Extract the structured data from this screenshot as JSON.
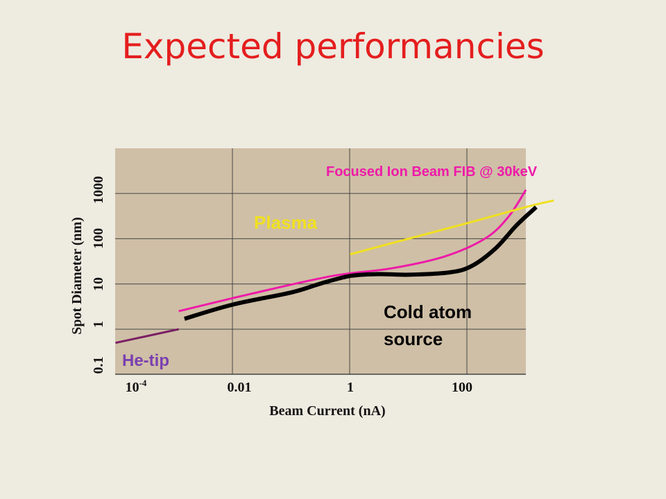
{
  "slide": {
    "title": "Expected performancies"
  },
  "colors": {
    "background": "#eeebe1",
    "plot_bg": "#cfbfa6",
    "title": "#e41e1e",
    "grid": "#444444"
  },
  "chart_data": {
    "type": "line",
    "title": "",
    "xlabel": "Beam Current (nA)",
    "ylabel": "Spot Diameter (nm)",
    "xscale": "log",
    "yscale": "log",
    "xlim": [
      1e-05,
      1000
    ],
    "ylim": [
      0.1,
      10000
    ],
    "grid": true,
    "x_ticks": [
      {
        "value": 0.0001,
        "base": "10",
        "exp": "-4"
      },
      {
        "value": 0.01,
        "base": "0.01",
        "exp": ""
      },
      {
        "value": 1,
        "base": "1",
        "exp": ""
      },
      {
        "value": 100,
        "base": "100",
        "exp": ""
      }
    ],
    "y_ticks": [
      {
        "value": 0.1,
        "label": "0.1"
      },
      {
        "value": 1,
        "label": "1"
      },
      {
        "value": 10,
        "label": "10"
      },
      {
        "value": 100,
        "label": "100"
      },
      {
        "value": 1000,
        "label": "1000"
      }
    ],
    "series": [
      {
        "name": "He-tip",
        "color": "#7a1f63",
        "label_color": "#7b3fb0",
        "width": 3,
        "points": [
          [
            1e-05,
            0.5
          ],
          [
            0.00012,
            1
          ]
        ]
      },
      {
        "name": "Focused Ion Beam FIB @ 30keV",
        "color": "#ee1aa8",
        "label_color": "#ee1aa8",
        "width": 3,
        "points": [
          [
            0.00012,
            2.5
          ],
          [
            0.002,
            6
          ],
          [
            0.05,
            15
          ],
          [
            0.5,
            22
          ],
          [
            4,
            40
          ],
          [
            20,
            100
          ],
          [
            50,
            300
          ],
          [
            100,
            1200
          ]
        ]
      },
      {
        "name": "Plasma",
        "color": "#f0e020",
        "label_color": "#f0e020",
        "width": 3,
        "points": [
          [
            0.1,
            45
          ],
          [
            1,
            100
          ],
          [
            10,
            220
          ],
          [
            100,
            500
          ],
          [
            300,
            700
          ]
        ]
      },
      {
        "name": "Cold atom source",
        "color": "#000000",
        "label_color": "#000000",
        "width": 6,
        "points": [
          [
            0.00015,
            1.7
          ],
          [
            0.001,
            3.5
          ],
          [
            0.01,
            6.5
          ],
          [
            0.03,
            10
          ],
          [
            0.1,
            15
          ],
          [
            0.3,
            16.5
          ],
          [
            1,
            16
          ],
          [
            5,
            18
          ],
          [
            12,
            25
          ],
          [
            30,
            60
          ],
          [
            70,
            200
          ],
          [
            150,
            500
          ]
        ]
      }
    ],
    "annotations": [
      {
        "text": "Focused Ion Beam FIB @ 30keV",
        "series": "Focused Ion Beam FIB @ 30keV"
      },
      {
        "text": "Plasma",
        "series": "Plasma"
      },
      {
        "text": "Cold atom",
        "series": "Cold atom source"
      },
      {
        "text": "source",
        "series": "Cold atom source"
      },
      {
        "text": "He-tip",
        "series": "He-tip"
      }
    ]
  }
}
